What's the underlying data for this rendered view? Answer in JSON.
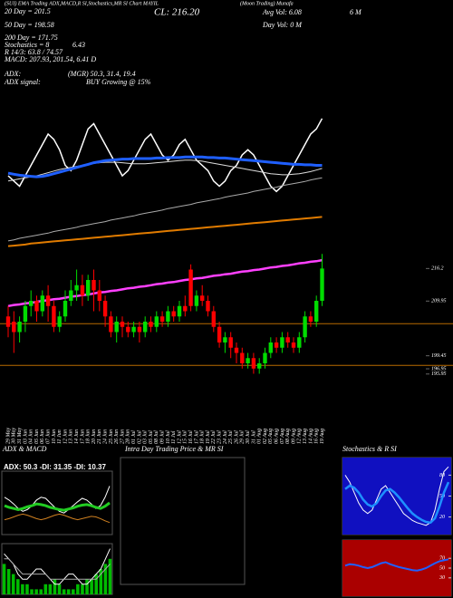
{
  "chart_data": [
    {
      "type": "candlestick",
      "title": "(SUI) EMA Trading ADX,MACD,R SI,Stochastics,MR SI Chart MAYIL",
      "subtitle": "(Moon Trading) Munafa",
      "annotations": [
        "20 Day = 201.5",
        "50 Day = 198.58",
        "200 Day = 171.75",
        "Stochastics = 8",
        "6.43",
        "R 14/3: 63.8 / 74.57",
        "MACD: 207.93, 201.54, 6.41 D",
        "CL: 216.20",
        "Avg Vol: 6.08",
        "6   M",
        "Day Vol: 0   M",
        "ADX:",
        "(MGR) 50.3, 31.4, 19.4",
        "ADX signal:",
        "BUY Growing @ 15%"
      ],
      "categories": [
        "29 May",
        "30 May",
        "31 May",
        "03 Jun",
        "04 Jun",
        "05 Jun",
        "06 Jun",
        "07 Jun",
        "10 Jun",
        "11 Jun",
        "12 Jun",
        "13 Jun",
        "14 Jun",
        "17 Jun",
        "18 Jun",
        "20 Jun",
        "21 Jun",
        "24 Jun",
        "25 Jun",
        "26 Jun",
        "27 Jun",
        "28 Jun",
        "01 Jul",
        "02 Jul",
        "03 Jul",
        "05 Jul",
        "08 Jul",
        "09 Jul",
        "10 Jul",
        "11 Jul",
        "12 Jul",
        "15 Jul",
        "16 Jul",
        "17 Jul",
        "18 Jul",
        "19 Jul",
        "22 Jul",
        "23 Jul",
        "24 Jul",
        "25 Jul",
        "26 Jul",
        "29 Jul",
        "30 Jul",
        "31 Jul",
        "01 Aug",
        "02 Aug",
        "05 Aug",
        "06 Aug",
        "07 Aug",
        "08 Aug",
        "09 Aug",
        "12 Aug",
        "13 Aug",
        "14 Aug",
        "16 Aug",
        "19 Aug"
      ],
      "open": [
        207,
        206,
        204,
        206,
        209,
        210,
        208,
        211,
        209,
        205,
        207,
        210,
        212,
        213,
        211,
        214,
        212,
        210,
        207,
        204,
        206,
        205,
        204,
        205,
        204,
        206,
        205,
        207,
        206,
        208,
        207,
        209,
        216,
        209,
        211,
        210,
        208,
        205,
        202,
        203,
        201,
        200,
        198,
        199,
        197,
        198,
        200,
        202,
        201,
        203,
        202,
        201,
        203,
        207,
        206,
        210
      ],
      "high": [
        209,
        208,
        207,
        210,
        212,
        211,
        212,
        213,
        210,
        208,
        212,
        214,
        216,
        215,
        215,
        216,
        214,
        211,
        208,
        207,
        207,
        206,
        206,
        206,
        207,
        207,
        208,
        208,
        209,
        209,
        210,
        211,
        217,
        212,
        213,
        211,
        209,
        206,
        204,
        204,
        202,
        201,
        200,
        200,
        199,
        201,
        203,
        203,
        204,
        204,
        203,
        204,
        208,
        208,
        211,
        219
      ],
      "low": [
        203,
        200,
        202,
        204,
        207,
        206,
        207,
        206,
        204,
        204,
        206,
        209,
        210,
        209,
        210,
        208,
        208,
        205,
        203,
        202,
        203,
        203,
        203,
        202,
        203,
        204,
        204,
        205,
        205,
        206,
        206,
        207,
        208,
        208,
        209,
        207,
        204,
        201,
        200,
        199,
        198,
        197,
        197,
        196,
        196,
        197,
        199,
        200,
        200,
        201,
        200,
        200,
        202,
        205,
        205,
        209
      ],
      "close": [
        205,
        204,
        206,
        209,
        210,
        208,
        211,
        209,
        205,
        207,
        210,
        212,
        213,
        211,
        214,
        212,
        210,
        207,
        204,
        206,
        205,
        204,
        205,
        204,
        206,
        205,
        207,
        206,
        208,
        207,
        209,
        208,
        209,
        211,
        210,
        208,
        205,
        202,
        203,
        201,
        200,
        198,
        199,
        197,
        198,
        200,
        202,
        201,
        203,
        202,
        201,
        203,
        207,
        206,
        210,
        216.2
      ],
      "up_color": "#00dd00",
      "down_color": "#ff0000",
      "ylim": [
        186,
        266
      ],
      "yticks": [
        216.2,
        209.95,
        199.45,
        196.95,
        195.95
      ],
      "levels": [
        205.6,
        197.6
      ],
      "level_color": "#b86a00",
      "series": [
        {
          "color": "#ffffff",
          "values": [
            234,
            233,
            232,
            234,
            236,
            238,
            240,
            242,
            241,
            239,
            236,
            235,
            237,
            240,
            243,
            244,
            242,
            240,
            238,
            236,
            234,
            235,
            237,
            239,
            241,
            242,
            240,
            238,
            237,
            238,
            240,
            241,
            239,
            237,
            236,
            235,
            233,
            232,
            233,
            235,
            236,
            238,
            239,
            238,
            236,
            234,
            232,
            231,
            232,
            234,
            236,
            238,
            240,
            242,
            243,
            245
          ]
        },
        {
          "color": "#dddddd",
          "values": [
            233.0,
            233.2,
            233.4,
            233.6,
            233.8,
            234.0,
            234.3,
            234.6,
            234.9,
            235.2,
            235.4,
            235.6,
            235.8,
            236.0,
            236.2,
            236.4,
            236.5,
            236.6,
            236.6,
            236.6,
            236.5,
            236.4,
            236.3,
            236.3,
            236.3,
            236.4,
            236.5,
            236.6,
            236.7,
            236.8,
            236.9,
            237.0,
            237.0,
            236.9,
            236.8,
            236.6,
            236.4,
            236.2,
            236.0,
            235.8,
            235.6,
            235.4,
            235.2,
            235.0,
            234.8,
            234.6,
            234.4,
            234.3,
            234.2,
            234.2,
            234.3,
            234.4,
            234.6,
            234.8,
            235.1,
            235.4
          ]
        },
        {
          "color": "#1f5fff",
          "values": [
            234.5,
            234.3,
            234.1,
            234.0,
            233.9,
            233.8,
            233.9,
            234.1,
            234.4,
            234.7,
            235.0,
            235.3,
            235.6,
            235.9,
            236.2,
            236.5,
            236.7,
            236.9,
            237.0,
            237.1,
            237.2,
            237.2,
            237.3,
            237.3,
            237.3,
            237.3,
            237.4,
            237.4,
            237.5,
            237.5,
            237.5,
            237.6,
            237.6,
            237.6,
            237.6,
            237.5,
            237.5,
            237.4,
            237.4,
            237.3,
            237.2,
            237.1,
            237.0,
            236.9,
            236.8,
            236.7,
            236.6,
            236.5,
            236.4,
            236.3,
            236.2,
            236.2,
            236.1,
            236.1,
            236.0,
            236.0
          ]
        },
        {
          "color": "#aaaaaa",
          "values": [
            221.5,
            221.7,
            222.0,
            222.2,
            222.4,
            222.6,
            222.8,
            223.0,
            223.3,
            223.5,
            223.7,
            223.9,
            224.1,
            224.4,
            224.6,
            224.8,
            225.0,
            225.2,
            225.5,
            225.7,
            225.9,
            226.1,
            226.3,
            226.6,
            226.8,
            227.0,
            227.2,
            227.4,
            227.7,
            227.9,
            228.1,
            228.3,
            228.5,
            228.8,
            229.0,
            229.2,
            229.4,
            229.6,
            229.9,
            230.1,
            230.3,
            230.5,
            230.7,
            231.0,
            231.2,
            231.4,
            231.6,
            231.8,
            232.1,
            232.3,
            232.5,
            232.7,
            232.9,
            233.2,
            233.4,
            233.6
          ]
        },
        {
          "color": "#e07b00",
          "values": [
            220.5,
            220.6,
            220.7,
            220.8,
            221.0,
            221.1,
            221.2,
            221.3,
            221.4,
            221.5,
            221.6,
            221.7,
            221.8,
            221.9,
            222.0,
            222.1,
            222.2,
            222.3,
            222.4,
            222.5,
            222.6,
            222.7,
            222.8,
            222.9,
            223.0,
            223.1,
            223.2,
            223.3,
            223.4,
            223.5,
            223.6,
            223.7,
            223.8,
            223.9,
            224.0,
            224.1,
            224.2,
            224.3,
            224.4,
            224.5,
            224.6,
            224.7,
            224.8,
            224.9,
            225.0,
            225.1,
            225.2,
            225.3,
            225.4,
            225.5,
            225.6,
            225.7,
            225.8,
            225.9,
            226.0,
            226.1
          ]
        },
        {
          "color": "#ff40ff",
          "values": [
            209.0,
            209.2,
            209.3,
            209.5,
            209.6,
            209.8,
            210.0,
            210.1,
            210.3,
            210.4,
            210.6,
            210.8,
            210.9,
            211.1,
            211.2,
            211.4,
            211.6,
            211.7,
            211.9,
            212.0,
            212.2,
            212.4,
            212.5,
            212.7,
            212.8,
            213.0,
            213.2,
            213.3,
            213.5,
            213.6,
            213.8,
            214.0,
            214.1,
            214.3,
            214.4,
            214.6,
            214.8,
            214.9,
            215.1,
            215.2,
            215.4,
            215.6,
            215.7,
            215.9,
            216.0,
            216.2,
            216.4,
            216.5,
            216.7,
            216.8,
            217.0,
            217.2,
            217.3,
            217.5,
            217.6,
            217.8
          ]
        }
      ]
    },
    {
      "type": "line",
      "title": "ADX & MACD",
      "subtitle": "ADX: 50.3 -DI: 31.35 -DI: 10.37",
      "ylim": [
        0,
        100
      ],
      "series": [
        {
          "color": "#d08020",
          "values": [
            20,
            22,
            25,
            28,
            30,
            28,
            25,
            22,
            20,
            22,
            25,
            28,
            30,
            28,
            25,
            22,
            20,
            22,
            24,
            26,
            25,
            22,
            18,
            15
          ]
        },
        {
          "color": "#ffffff",
          "values": [
            60,
            55,
            48,
            40,
            35,
            38,
            45,
            55,
            60,
            58,
            50,
            42,
            35,
            32,
            38,
            45,
            52,
            58,
            55,
            48,
            40,
            45,
            60,
            80
          ]
        },
        {
          "color": "#22cc22",
          "values": [
            45,
            42,
            40,
            38,
            40,
            43,
            45,
            48,
            47,
            45,
            42,
            40,
            38,
            37,
            39,
            41,
            44,
            46,
            47,
            45,
            42,
            40,
            44,
            50
          ]
        }
      ]
    },
    {
      "type": "bar",
      "ylim": [
        0,
        10
      ],
      "color": "#00bb00",
      "values": [
        6,
        5,
        4,
        3,
        2,
        2,
        1,
        1,
        1,
        2,
        2,
        3,
        2,
        1,
        1,
        1,
        2,
        2,
        3,
        3,
        4,
        5,
        6,
        7
      ],
      "series": [
        {
          "color": "#ffffff",
          "values": [
            8,
            7,
            6,
            4,
            3,
            3,
            4,
            5,
            5,
            4,
            3,
            2,
            2,
            3,
            4,
            4,
            3,
            2,
            2,
            3,
            4,
            5,
            7,
            9
          ]
        },
        {
          "color": "#aaaaaa",
          "values": [
            7,
            7,
            6,
            5,
            4,
            4,
            4,
            4,
            4,
            4,
            3,
            3,
            3,
            3,
            3,
            3,
            3,
            3,
            3,
            3,
            3,
            4,
            5,
            6
          ]
        }
      ]
    },
    {
      "type": "blank",
      "title": "Intra Day Trading Price & MR SI"
    },
    {
      "type": "line",
      "title": "Stochastics & R SI",
      "background": "#1010c0",
      "ylim": [
        0,
        100
      ],
      "yticks": [
        80,
        50,
        20
      ],
      "series": [
        {
          "color": "#ffffff",
          "values": [
            80,
            70,
            55,
            40,
            30,
            25,
            30,
            45,
            60,
            65,
            55,
            45,
            35,
            25,
            20,
            15,
            12,
            10,
            8,
            12,
            30,
            60,
            85,
            92
          ]
        },
        {
          "color": "#1e90ff",
          "values": [
            60,
            65,
            62,
            55,
            45,
            38,
            35,
            40,
            50,
            58,
            60,
            55,
            48,
            40,
            32,
            25,
            20,
            16,
            13,
            12,
            18,
            35,
            55,
            70
          ]
        }
      ]
    },
    {
      "type": "line",
      "background": "#aa0000",
      "ylim": [
        0,
        100
      ],
      "yticks": [
        70,
        50,
        30
      ],
      "series": [
        {
          "color": "#2060ff",
          "values": [
            55,
            58,
            57,
            55,
            52,
            50,
            52,
            56,
            60,
            62,
            58,
            55,
            52,
            50,
            48,
            46,
            45,
            47,
            50,
            55,
            60,
            64,
            66,
            68
          ]
        }
      ]
    }
  ]
}
